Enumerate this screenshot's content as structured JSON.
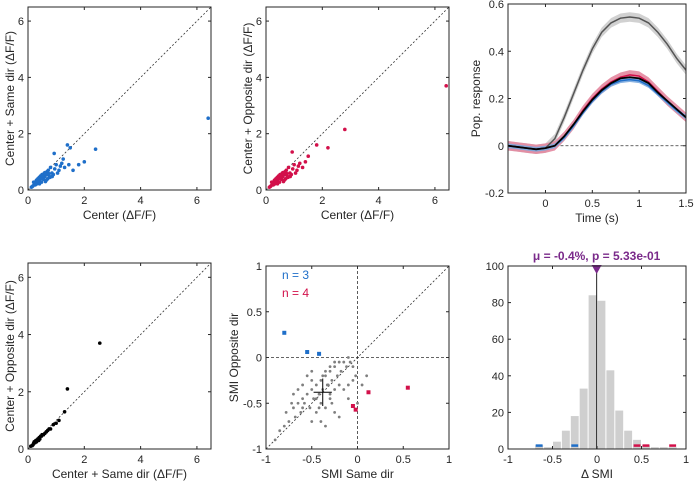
{
  "colors": {
    "same": "#1f6fc9",
    "opposite": "#d2104a",
    "center": "#000000",
    "gray_points": "#7f7f7f",
    "hist_fill": "#cfcfcf",
    "annotation": "#7a2a8a",
    "response_center": "#555555"
  },
  "chart_data": [
    {
      "id": "p1",
      "type": "scatter",
      "xlabel": "Center (ΔF/F)",
      "ylabel": "Center + Same dir (ΔF/F)",
      "xlim": [
        0,
        6.5
      ],
      "ylim": [
        0,
        6.5
      ],
      "xticks": [
        "0",
        "2",
        "4",
        "6"
      ],
      "yticks": [
        "0",
        "2",
        "4",
        "6"
      ],
      "diagonal": true,
      "points_x": [
        0.12,
        0.18,
        0.22,
        0.25,
        0.28,
        0.3,
        0.32,
        0.35,
        0.38,
        0.4,
        0.42,
        0.45,
        0.48,
        0.5,
        0.52,
        0.55,
        0.58,
        0.6,
        0.62,
        0.65,
        0.68,
        0.7,
        0.72,
        0.75,
        0.78,
        0.8,
        0.85,
        0.9,
        0.95,
        1.0,
        1.05,
        1.1,
        1.2,
        1.3,
        1.4,
        1.5,
        1.6,
        1.8,
        2.0,
        2.4,
        0.15,
        0.2,
        0.26,
        0.33,
        0.41,
        0.47,
        0.53,
        0.61,
        0.66,
        0.74,
        0.86,
        0.93,
        1.15,
        1.25,
        1.45,
        6.4
      ],
      "points_y": [
        0.1,
        0.15,
        0.25,
        0.2,
        0.3,
        0.35,
        0.22,
        0.4,
        0.3,
        0.45,
        0.35,
        0.5,
        0.28,
        0.55,
        0.42,
        0.38,
        0.6,
        0.48,
        0.3,
        0.55,
        0.65,
        0.4,
        0.7,
        0.5,
        0.45,
        0.8,
        0.6,
        0.55,
        0.75,
        0.9,
        0.6,
        0.7,
        0.95,
        0.8,
        1.6,
        1.5,
        0.7,
        0.9,
        1.0,
        1.45,
        0.12,
        0.28,
        0.18,
        0.32,
        0.22,
        0.42,
        0.5,
        0.62,
        0.36,
        0.58,
        0.48,
        1.3,
        0.85,
        1.1,
        0.9,
        2.55
      ]
    },
    {
      "id": "p2",
      "type": "scatter",
      "xlabel": "Center (ΔF/F)",
      "ylabel": "Center + Opposite dir (ΔF/F)",
      "xlim": [
        0,
        6.5
      ],
      "ylim": [
        0,
        6.5
      ],
      "xticks": [
        "0",
        "2",
        "4",
        "6"
      ],
      "yticks": [
        "0",
        "2",
        "4",
        "6"
      ],
      "diagonal": true,
      "points_x": [
        0.12,
        0.18,
        0.22,
        0.25,
        0.28,
        0.3,
        0.32,
        0.35,
        0.38,
        0.4,
        0.42,
        0.45,
        0.48,
        0.5,
        0.52,
        0.55,
        0.58,
        0.6,
        0.62,
        0.65,
        0.68,
        0.7,
        0.72,
        0.75,
        0.78,
        0.8,
        0.85,
        0.9,
        0.95,
        1.0,
        1.05,
        1.1,
        1.2,
        1.3,
        1.4,
        1.5,
        1.8,
        2.2,
        2.8,
        0.15,
        0.2,
        0.26,
        0.33,
        0.41,
        0.47,
        0.53,
        0.61,
        0.66,
        0.74,
        0.86,
        0.93,
        1.15,
        6.4
      ],
      "points_y": [
        0.1,
        0.15,
        0.2,
        0.25,
        0.3,
        0.35,
        0.22,
        0.4,
        0.3,
        0.45,
        0.35,
        0.5,
        0.28,
        0.55,
        0.42,
        0.38,
        0.6,
        0.48,
        0.3,
        0.55,
        0.65,
        0.4,
        0.7,
        0.5,
        0.45,
        0.8,
        0.6,
        0.55,
        0.75,
        0.9,
        0.6,
        0.7,
        0.95,
        0.8,
        1.0,
        1.2,
        1.6,
        1.5,
        2.15,
        0.12,
        0.28,
        0.18,
        0.32,
        0.22,
        0.42,
        0.5,
        0.62,
        0.36,
        0.58,
        0.48,
        1.35,
        0.85,
        3.7
      ]
    },
    {
      "id": "p3",
      "type": "line",
      "xlabel": "Time (s)",
      "ylabel": "Pop. response",
      "xlim": [
        -0.4,
        1.5
      ],
      "ylim": [
        -0.2,
        0.6
      ],
      "xticks": [
        "0",
        "0.5",
        "1",
        "1.5"
      ],
      "yticks": [
        "-0.2",
        "0",
        "0.2",
        "0.4",
        "0.6"
      ],
      "xtick_values": [
        0,
        0.5,
        1,
        1.5
      ],
      "ytick_values": [
        -0.2,
        0,
        0.2,
        0.4,
        0.6
      ],
      "x": [
        -0.4,
        -0.3,
        -0.2,
        -0.1,
        0,
        0.1,
        0.2,
        0.3,
        0.4,
        0.5,
        0.6,
        0.7,
        0.8,
        0.9,
        1.0,
        1.1,
        1.2,
        1.3,
        1.4,
        1.5
      ],
      "series": [
        {
          "role": "center",
          "values": [
            0.0,
            -0.005,
            -0.01,
            -0.015,
            -0.01,
            0.03,
            0.12,
            0.22,
            0.32,
            0.41,
            0.48,
            0.52,
            0.54,
            0.545,
            0.54,
            0.52,
            0.48,
            0.43,
            0.37,
            0.32
          ],
          "band": 0.02
        },
        {
          "role": "opposite",
          "values": [
            0.0,
            -0.005,
            -0.01,
            -0.015,
            -0.01,
            0.0,
            0.04,
            0.09,
            0.15,
            0.2,
            0.24,
            0.27,
            0.29,
            0.3,
            0.295,
            0.27,
            0.23,
            0.19,
            0.155,
            0.12
          ],
          "band": 0.02
        },
        {
          "role": "same",
          "values": [
            0.0,
            -0.005,
            -0.01,
            -0.015,
            -0.01,
            0.0,
            0.035,
            0.085,
            0.14,
            0.19,
            0.23,
            0.26,
            0.275,
            0.28,
            0.275,
            0.255,
            0.22,
            0.185,
            0.15,
            0.12
          ],
          "band": 0.01
        },
        {
          "role": "black",
          "values": [
            0.0,
            -0.005,
            -0.01,
            -0.015,
            -0.01,
            0.0,
            0.04,
            0.09,
            0.145,
            0.195,
            0.235,
            0.265,
            0.285,
            0.29,
            0.285,
            0.265,
            0.225,
            0.19,
            0.155,
            0.12
          ],
          "band": 0
        }
      ],
      "zero_line": true
    },
    {
      "id": "p4",
      "type": "scatter",
      "xlabel": "Center + Same dir (ΔF/F)",
      "ylabel": "Center + Opposite dir (ΔF/F)",
      "xlim": [
        0,
        6.5
      ],
      "ylim": [
        0,
        6.5
      ],
      "xticks": [
        "0",
        "2",
        "4",
        "6"
      ],
      "yticks": [
        "0",
        "2",
        "4",
        "6"
      ],
      "diagonal": true,
      "points_x": [
        0.1,
        0.15,
        0.2,
        0.25,
        0.28,
        0.3,
        0.35,
        0.38,
        0.4,
        0.42,
        0.45,
        0.5,
        0.55,
        0.6,
        0.65,
        0.7,
        0.75,
        0.8,
        0.9,
        1.0,
        1.1,
        1.3,
        1.4,
        2.55,
        0.18,
        0.22,
        0.32,
        0.48
      ],
      "points_y": [
        0.1,
        0.12,
        0.2,
        0.22,
        0.3,
        0.25,
        0.35,
        0.3,
        0.4,
        0.35,
        0.45,
        0.5,
        0.5,
        0.55,
        0.6,
        0.65,
        0.7,
        0.7,
        0.85,
        0.9,
        1.0,
        1.3,
        2.1,
        3.7,
        0.15,
        0.25,
        0.3,
        0.45
      ]
    },
    {
      "id": "p5",
      "type": "scatter",
      "xlabel": "SMI Same dir",
      "ylabel": "SMI Opposite dir",
      "xlim": [
        -1,
        1
      ],
      "ylim": [
        -1,
        1
      ],
      "xticks": [
        "-1",
        "-0.5",
        "0",
        "0.5",
        "1"
      ],
      "yticks": [
        "-1",
        "-0.5",
        "0",
        "0.5",
        "1"
      ],
      "xtick_values": [
        -1,
        -0.5,
        0,
        0.5,
        1
      ],
      "ytick_values": [
        -1,
        -0.5,
        0,
        0.5,
        1
      ],
      "diagonal": true,
      "n_same": "n = 3",
      "n_opposite": "n = 4",
      "points_x": [
        -0.9,
        -0.85,
        -0.8,
        -0.78,
        -0.75,
        -0.7,
        -0.68,
        -0.65,
        -0.62,
        -0.6,
        -0.58,
        -0.55,
        -0.52,
        -0.5,
        -0.48,
        -0.45,
        -0.42,
        -0.4,
        -0.38,
        -0.35,
        -0.32,
        -0.3,
        -0.28,
        -0.25,
        -0.22,
        -0.2,
        -0.18,
        -0.15,
        -0.12,
        -0.1,
        -0.08,
        -0.05,
        -0.02,
        0.0,
        0.05,
        0.1,
        -0.55,
        -0.5,
        -0.45,
        -0.4,
        -0.35,
        -0.3,
        -0.25,
        -0.2,
        -0.45,
        -0.4,
        -0.35,
        -0.3,
        -0.25,
        -0.6,
        -0.65,
        -0.7,
        -0.5,
        -0.42,
        -0.38,
        -0.33,
        -0.28,
        -0.15,
        -0.1,
        -0.05,
        -0.2,
        -0.5,
        -0.3,
        -0.1,
        -0.35,
        -0.6,
        -0.72,
        -0.25
      ],
      "points_y": [
        -0.9,
        -0.8,
        -0.75,
        -0.6,
        -0.7,
        -0.55,
        -0.65,
        -0.5,
        -0.6,
        -0.45,
        -0.5,
        -0.4,
        -0.55,
        -0.35,
        -0.45,
        -0.3,
        -0.4,
        -0.25,
        -0.35,
        -0.2,
        -0.3,
        -0.15,
        -0.25,
        -0.1,
        -0.2,
        -0.05,
        -0.15,
        -0.05,
        -0.1,
        0.0,
        -0.05,
        -0.1,
        -0.2,
        -0.5,
        -0.3,
        -0.2,
        -0.2,
        -0.25,
        -0.45,
        -0.5,
        -0.55,
        -0.4,
        -0.35,
        -0.3,
        -0.6,
        -0.7,
        -0.15,
        -0.45,
        -0.6,
        -0.3,
        -0.35,
        -0.4,
        -0.15,
        -0.55,
        -0.2,
        -0.3,
        -0.5,
        -0.35,
        -0.3,
        -0.25,
        -0.65,
        -0.7,
        -0.1,
        -0.45,
        -0.75,
        -0.55,
        -0.5,
        -0.05
      ],
      "same_x": [
        -0.8,
        -0.55,
        -0.42
      ],
      "same_y": [
        0.27,
        0.06,
        0.04
      ],
      "opposite_x": [
        -0.05,
        -0.02,
        0.12,
        0.55
      ],
      "opposite_y": [
        -0.53,
        -0.57,
        -0.38,
        -0.33
      ],
      "mean_x": -0.38,
      "mean_y": -0.38,
      "err_x": 0.1,
      "err_y": 0.15
    },
    {
      "id": "p6",
      "type": "bar",
      "xlabel": "Δ SMI",
      "ylabel": "",
      "xlim": [
        -1,
        1
      ],
      "ylim": [
        0,
        100
      ],
      "xticks": [
        "-1",
        "-0.5",
        "0",
        "0.5",
        "1"
      ],
      "yticks": [
        "0",
        "20",
        "40",
        "60",
        "80",
        "100"
      ],
      "xtick_values": [
        -1,
        -0.5,
        0,
        0.5,
        1
      ],
      "ytick_values": [
        0,
        20,
        40,
        60,
        80,
        100
      ],
      "bin_width": 0.1,
      "bin_centers": [
        -0.65,
        -0.55,
        -0.45,
        -0.35,
        -0.25,
        -0.15,
        -0.05,
        0.05,
        0.15,
        0.25,
        0.35,
        0.45,
        0.55,
        0.65,
        0.75,
        0.85
      ],
      "values": [
        2,
        1,
        4,
        10,
        18,
        33,
        84,
        81,
        43,
        21,
        10,
        5,
        2,
        1,
        1,
        1
      ],
      "same_bins": [
        -0.65,
        -0.25
      ],
      "opposite_bins": [
        0.45,
        0.55,
        0.85
      ],
      "annotation": "μ = -0.4%, p = 5.33e-01",
      "mean_value": -0.004
    }
  ]
}
